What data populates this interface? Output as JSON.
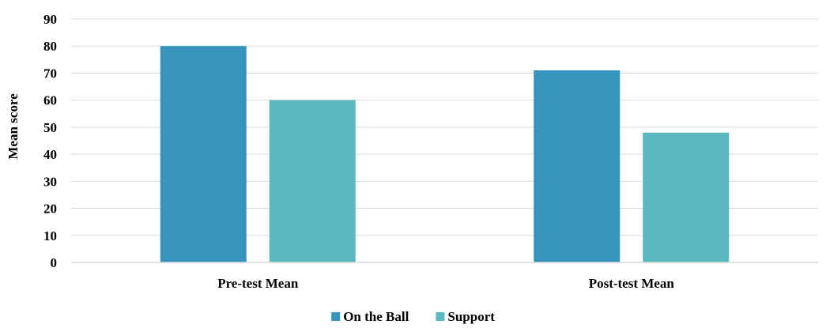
{
  "chart_data": {
    "type": "bar",
    "title": "",
    "xlabel": "",
    "ylabel": "Mean  score",
    "categories": [
      "Pre-test Mean",
      "Post-test Mean"
    ],
    "series": [
      {
        "name": "On the Ball",
        "values": [
          80,
          71
        ],
        "color": "#3795bd"
      },
      {
        "name": "Support",
        "values": [
          60,
          48
        ],
        "color": "#5bb7c0"
      }
    ],
    "ylim": [
      0,
      90
    ],
    "yticks": [
      0,
      10,
      20,
      30,
      40,
      50,
      60,
      70,
      80,
      90
    ],
    "grid": true,
    "legend": "bottom-center"
  }
}
